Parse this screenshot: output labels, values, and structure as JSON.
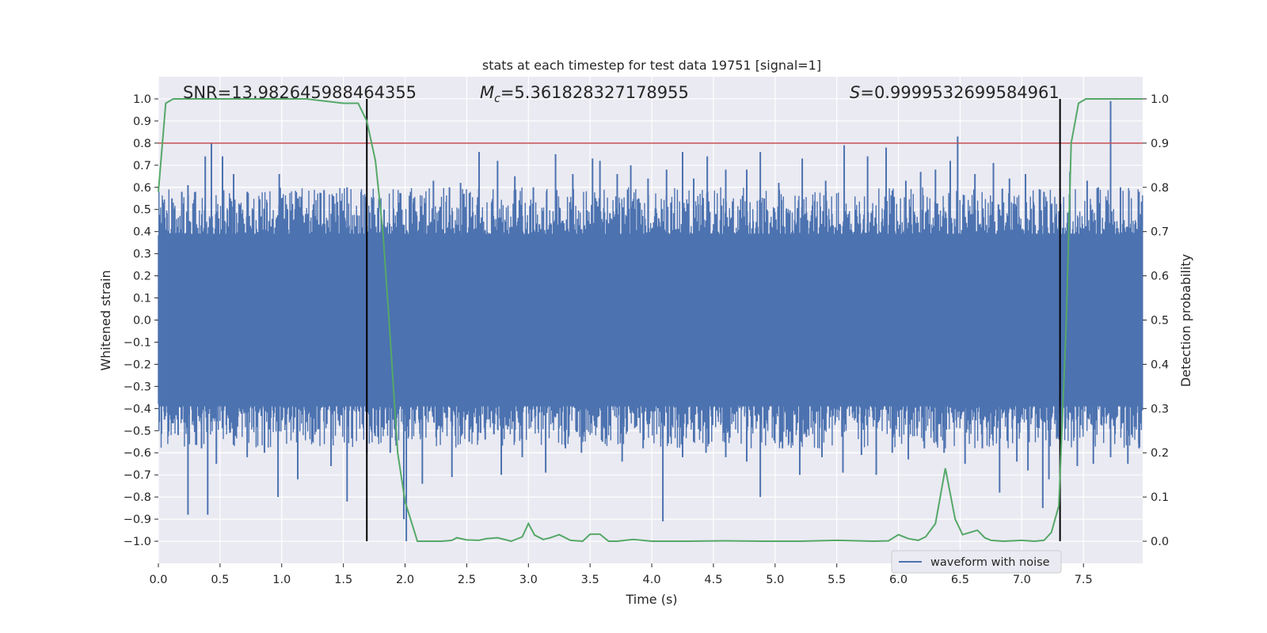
{
  "chart_data": {
    "type": "line",
    "title": "stats at each timestep for test data 19751 [signal=1]",
    "xlabel": "Time (s)",
    "ylabel": "Whitened strain",
    "ylabel_right": "Detection probability",
    "xlim": [
      0.0,
      7.98
    ],
    "ylim": [
      -1.1,
      1.1
    ],
    "ylim_right": [
      -0.05,
      1.05
    ],
    "x_ticks": [
      "0.0",
      "0.5",
      "1.0",
      "1.5",
      "2.0",
      "2.5",
      "3.0",
      "3.5",
      "4.0",
      "4.5",
      "5.0",
      "5.5",
      "6.0",
      "6.5",
      "7.0",
      "7.5"
    ],
    "y_ticks": [
      "1.0",
      "0.9",
      "0.8",
      "0.7",
      "0.6",
      "0.5",
      "0.4",
      "0.3",
      "0.2",
      "0.1",
      "0.0",
      "−0.1",
      "−0.2",
      "−0.3",
      "−0.4",
      "−0.5",
      "−0.6",
      "−0.7",
      "−0.8",
      "−0.9",
      "−1.0"
    ],
    "y_ticks_right": [
      "1.0",
      "0.9",
      "0.8",
      "0.7",
      "0.6",
      "0.5",
      "0.4",
      "0.3",
      "0.2",
      "0.1",
      "0.0"
    ],
    "grid": true,
    "annotations": {
      "snr": "SNR=13.982645988464355",
      "mc_symbol": "M",
      "mc_subscript": "c",
      "mc_value": "=5.361828327178955",
      "s_symbol": "S",
      "s_value": "=0.9999532699584961"
    },
    "legend": {
      "label": "waveform with noise",
      "placement": "lower right"
    },
    "threshold_right": 0.9,
    "vertical_lines_x": [
      1.69,
      7.31
    ],
    "series": [
      {
        "name": "waveform with noise",
        "color": "#4c72b0",
        "axis": "left",
        "representation": "dense noise envelope",
        "core_band": [
          -0.39,
          0.39
        ],
        "upper_spikes": [
          [
            0.11,
            0.55
          ],
          [
            0.19,
            0.58
          ],
          [
            0.24,
            0.61
          ],
          [
            0.3,
            0.58
          ],
          [
            0.38,
            0.74
          ],
          [
            0.43,
            0.8
          ],
          [
            0.52,
            0.74
          ],
          [
            0.61,
            0.66
          ],
          [
            0.72,
            0.58
          ],
          [
            0.82,
            0.53
          ],
          [
            0.98,
            0.66
          ],
          [
            1.13,
            0.55
          ],
          [
            1.26,
            0.51
          ],
          [
            1.42,
            0.56
          ],
          [
            1.53,
            0.6
          ],
          [
            1.7,
            0.4
          ],
          [
            1.83,
            0.5
          ],
          [
            2.07,
            0.55
          ],
          [
            2.23,
            0.63
          ],
          [
            2.36,
            0.6
          ],
          [
            2.45,
            0.62
          ],
          [
            2.6,
            0.76
          ],
          [
            2.75,
            0.72
          ],
          [
            2.89,
            0.65
          ],
          [
            3.04,
            0.6
          ],
          [
            3.22,
            0.75
          ],
          [
            3.36,
            0.66
          ],
          [
            3.52,
            0.73
          ],
          [
            3.58,
            0.72
          ],
          [
            3.72,
            0.66
          ],
          [
            3.83,
            0.7
          ],
          [
            3.97,
            0.64
          ],
          [
            4.12,
            0.68
          ],
          [
            4.25,
            0.76
          ],
          [
            4.34,
            0.64
          ],
          [
            4.45,
            0.74
          ],
          [
            4.6,
            0.68
          ],
          [
            4.77,
            0.68
          ],
          [
            4.88,
            0.76
          ],
          [
            5.03,
            0.62
          ],
          [
            5.22,
            0.73
          ],
          [
            5.41,
            0.63
          ],
          [
            5.56,
            0.79
          ],
          [
            5.75,
            0.74
          ],
          [
            5.9,
            0.78
          ],
          [
            6.06,
            0.63
          ],
          [
            6.18,
            0.67
          ],
          [
            6.3,
            0.68
          ],
          [
            6.42,
            0.72
          ],
          [
            6.48,
            0.83
          ],
          [
            6.62,
            0.66
          ],
          [
            6.77,
            0.71
          ],
          [
            6.9,
            0.64
          ],
          [
            7.03,
            0.66
          ],
          [
            7.18,
            0.58
          ],
          [
            7.28,
            0.48
          ],
          [
            7.39,
            0.67
          ],
          [
            7.53,
            0.63
          ],
          [
            7.62,
            0.6
          ],
          [
            7.72,
            0.99
          ],
          [
            7.8,
            0.6
          ],
          [
            7.95,
            0.58
          ]
        ],
        "lower_spikes": [
          [
            0.05,
            -0.45
          ],
          [
            0.16,
            -0.52
          ],
          [
            0.24,
            -0.88
          ],
          [
            0.35,
            -0.58
          ],
          [
            0.4,
            -0.88
          ],
          [
            0.47,
            -0.65
          ],
          [
            0.58,
            -0.51
          ],
          [
            0.72,
            -0.62
          ],
          [
            0.86,
            -0.6
          ],
          [
            0.97,
            -0.8
          ],
          [
            1.13,
            -0.72
          ],
          [
            1.25,
            -0.55
          ],
          [
            1.4,
            -0.66
          ],
          [
            1.53,
            -0.82
          ],
          [
            1.69,
            -0.6
          ],
          [
            1.88,
            -0.6
          ],
          [
            1.99,
            -0.9
          ],
          [
            2.01,
            -1.0
          ],
          [
            2.14,
            -0.74
          ],
          [
            2.38,
            -0.71
          ],
          [
            2.52,
            -0.55
          ],
          [
            2.65,
            -0.54
          ],
          [
            2.78,
            -0.7
          ],
          [
            2.95,
            -0.62
          ],
          [
            3.14,
            -0.69
          ],
          [
            3.3,
            -0.58
          ],
          [
            3.43,
            -0.6
          ],
          [
            3.6,
            -0.55
          ],
          [
            3.76,
            -0.64
          ],
          [
            3.93,
            -0.58
          ],
          [
            4.09,
            -0.91
          ],
          [
            4.25,
            -0.62
          ],
          [
            4.44,
            -0.6
          ],
          [
            4.6,
            -0.62
          ],
          [
            4.77,
            -0.64
          ],
          [
            4.88,
            -0.8
          ],
          [
            5.06,
            -0.58
          ],
          [
            5.2,
            -0.7
          ],
          [
            5.38,
            -0.62
          ],
          [
            5.55,
            -0.69
          ],
          [
            5.7,
            -0.61
          ],
          [
            5.82,
            -0.7
          ],
          [
            5.95,
            -0.6
          ],
          [
            6.08,
            -0.63
          ],
          [
            6.21,
            -0.58
          ],
          [
            6.37,
            -0.6
          ],
          [
            6.54,
            -0.65
          ],
          [
            6.68,
            -0.58
          ],
          [
            6.82,
            -0.78
          ],
          [
            6.96,
            -0.64
          ],
          [
            7.05,
            -0.68
          ],
          [
            7.17,
            -0.85
          ],
          [
            7.22,
            -0.72
          ],
          [
            7.45,
            -0.66
          ],
          [
            7.58,
            -0.65
          ],
          [
            7.72,
            -0.62
          ],
          [
            7.86,
            -0.65
          ],
          [
            7.95,
            -0.58
          ]
        ]
      },
      {
        "name": "",
        "color": "#55a868",
        "axis": "right",
        "x": [
          0.0,
          0.06,
          0.12,
          0.3,
          0.6,
          0.9,
          1.2,
          1.5,
          1.62,
          1.69,
          1.76,
          1.82,
          1.87,
          1.94,
          2.0,
          2.1,
          2.2,
          2.3,
          2.38,
          2.42,
          2.5,
          2.6,
          2.66,
          2.75,
          2.86,
          2.95,
          3.0,
          3.05,
          3.12,
          3.18,
          3.25,
          3.34,
          3.44,
          3.5,
          3.58,
          3.65,
          3.72,
          3.85,
          4.0,
          4.3,
          4.6,
          4.9,
          5.2,
          5.5,
          5.8,
          5.92,
          6.0,
          6.08,
          6.16,
          6.22,
          6.3,
          6.38,
          6.46,
          6.52,
          6.58,
          6.64,
          6.7,
          6.75,
          6.85,
          7.0,
          7.1,
          7.18,
          7.24,
          7.3,
          7.36,
          7.4,
          7.46,
          7.52,
          7.7,
          7.98
        ],
        "y": [
          0.79,
          0.99,
          1.0,
          1.0,
          1.0,
          1.0,
          1.0,
          0.99,
          0.99,
          0.95,
          0.86,
          0.7,
          0.5,
          0.2,
          0.09,
          0.0,
          0.0,
          0.0,
          0.002,
          0.008,
          0.003,
          0.002,
          0.006,
          0.008,
          0.0,
          0.01,
          0.04,
          0.014,
          0.004,
          0.008,
          0.015,
          0.002,
          0.0,
          0.016,
          0.016,
          0.0,
          0.0,
          0.004,
          0.0,
          0.0,
          0.001,
          0.0,
          0.0,
          0.002,
          0.0,
          0.001,
          0.015,
          0.006,
          0.002,
          0.01,
          0.04,
          0.165,
          0.05,
          0.015,
          0.02,
          0.025,
          0.008,
          0.002,
          0.0,
          0.002,
          0.0,
          0.002,
          0.02,
          0.08,
          0.49,
          0.9,
          0.99,
          1.0,
          1.0,
          1.0
        ]
      }
    ]
  }
}
